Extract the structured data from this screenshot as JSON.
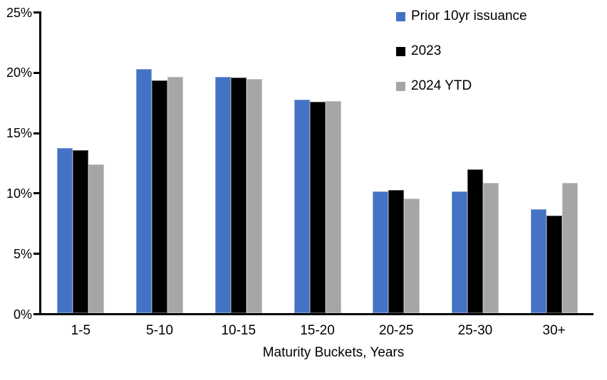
{
  "figure": {
    "background": "#FFFFFF",
    "axis_color": "#000000"
  },
  "chart_data": {
    "type": "bar",
    "title": "",
    "xlabel": "Maturity Buckets, Years",
    "ylabel": "",
    "categories": [
      "1-5",
      "5-10",
      "10-15",
      "15-20",
      "20-25",
      "25-30",
      "30+"
    ],
    "series": [
      {
        "name": "Prior 10yr issuance",
        "color": "#4472C4",
        "values": [
          13.7,
          20.2,
          19.6,
          17.7,
          10.1,
          10.1,
          8.6
        ]
      },
      {
        "name": "2023",
        "color": "#000000",
        "values": [
          13.5,
          19.3,
          19.5,
          17.5,
          10.2,
          11.9,
          8.1
        ]
      },
      {
        "name": "2024 YTD",
        "color": "#A6A6A6",
        "values": [
          12.3,
          19.6,
          19.4,
          17.6,
          9.5,
          10.8,
          10.8
        ]
      }
    ],
    "ylim": [
      0,
      25
    ],
    "ytick_step": 5,
    "ytick_labels": [
      "0%",
      "5%",
      "10%",
      "15%",
      "20%",
      "25%"
    ],
    "grid": false,
    "legend_position": "top-right"
  }
}
